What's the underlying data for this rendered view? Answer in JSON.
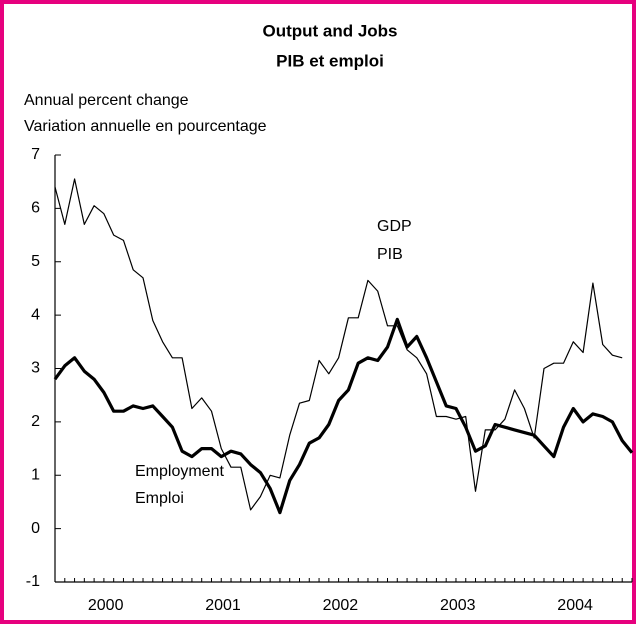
{
  "chart_data": {
    "type": "line",
    "title": "Output and Jobs",
    "subtitle": "PIB et emploi",
    "y_label": [
      "Annual percent change",
      "Variation annuelle en pourcentage"
    ],
    "categories": [
      null,
      null,
      null,
      null,
      null,
      null,
      "2000",
      null,
      null,
      null,
      null,
      null,
      null,
      null,
      null,
      null,
      null,
      null,
      "2001",
      null,
      null,
      null,
      null,
      null,
      null,
      null,
      null,
      null,
      null,
      null,
      "2002",
      null,
      null,
      null,
      null,
      null,
      null,
      null,
      null,
      null,
      null,
      null,
      "2003",
      null,
      null,
      null,
      null,
      null,
      null,
      null,
      null,
      null,
      null,
      null,
      "2004",
      null,
      null,
      null,
      null,
      null
    ],
    "series": [
      {
        "name": "GDP PIB",
        "labels": [
          "GDP",
          "PIB"
        ],
        "color": "#000000",
        "width": 1.2,
        "values": [
          6.4,
          5.7,
          6.55,
          5.7,
          6.05,
          5.9,
          5.5,
          5.4,
          4.85,
          4.7,
          3.9,
          3.5,
          3.2,
          3.2,
          2.25,
          2.45,
          2.2,
          1.5,
          1.15,
          1.15,
          0.35,
          0.6,
          1.0,
          0.95,
          1.75,
          2.35,
          2.4,
          3.15,
          2.9,
          3.2,
          3.95,
          3.95,
          4.65,
          4.45,
          3.8,
          3.8,
          3.35,
          3.2,
          2.9,
          2.1,
          2.1,
          2.05,
          2.1,
          0.7,
          1.85,
          1.85,
          2.05,
          2.6,
          2.25,
          1.7,
          3.0,
          3.1,
          3.1,
          3.5,
          3.3,
          4.6,
          3.45,
          3.25,
          3.2,
          null
        ]
      },
      {
        "name": "Employment Emploi",
        "labels": [
          "Employment",
          "Emploi"
        ],
        "color": "#000000",
        "width": 3.2,
        "values": [
          2.8,
          3.05,
          3.2,
          2.95,
          2.8,
          2.55,
          2.2,
          2.2,
          2.3,
          2.25,
          2.3,
          2.1,
          1.9,
          1.45,
          1.35,
          1.5,
          1.5,
          1.35,
          1.45,
          1.4,
          1.2,
          1.05,
          0.75,
          0.3,
          0.9,
          1.2,
          1.6,
          1.7,
          1.95,
          2.4,
          2.6,
          3.1,
          3.2,
          3.15,
          3.4,
          3.92,
          3.4,
          3.6,
          3.2,
          2.75,
          2.3,
          2.25,
          1.9,
          1.45,
          1.55,
          1.95,
          1.9,
          1.85,
          1.8,
          1.75,
          1.55,
          1.35,
          1.9,
          2.25,
          2.0,
          2.15,
          2.1,
          2.0,
          1.65,
          1.42
        ]
      }
    ],
    "ylim": [
      -1,
      7
    ],
    "yticks": [
      -1,
      0,
      1,
      2,
      3,
      4,
      5,
      6,
      7
    ],
    "frame_color": "#e6007e"
  }
}
